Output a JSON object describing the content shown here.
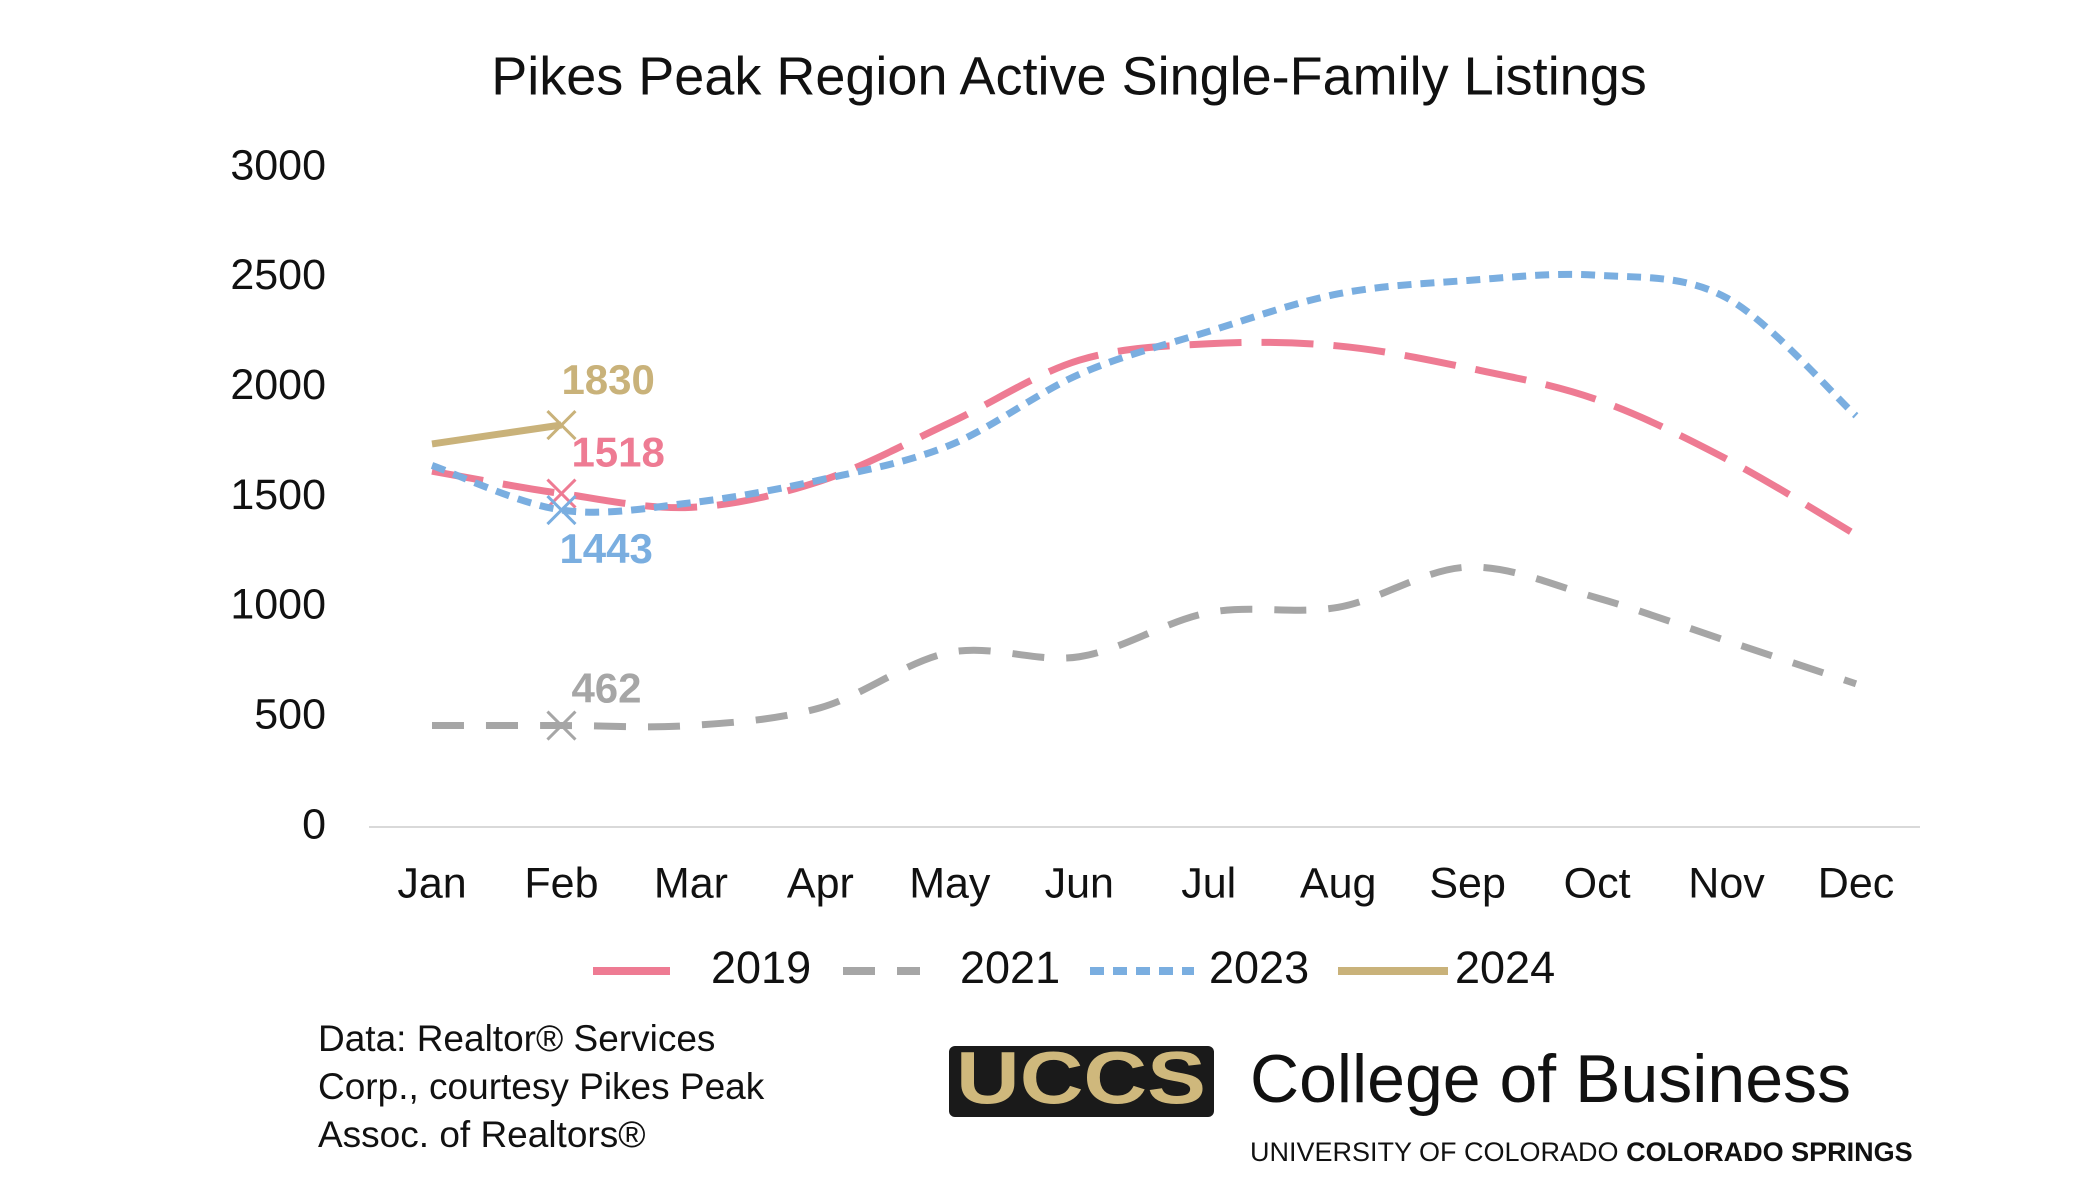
{
  "chart_data": {
    "type": "line",
    "title": "Pikes Peak Region Active Single-Family Listings",
    "categories": [
      "Jan",
      "Feb",
      "Mar",
      "Apr",
      "May",
      "Jun",
      "Jul",
      "Aug",
      "Sep",
      "Oct",
      "Nov",
      "Dec"
    ],
    "series": [
      {
        "name": "2019",
        "color": "#ee7b93",
        "dash": "long-dash",
        "values": [
          1620,
          1518,
          1455,
          1575,
          1840,
          2125,
          2200,
          2190,
          2090,
          1945,
          1675,
          1330
        ]
      },
      {
        "name": "2021",
        "color": "#a6a6a6",
        "dash": "dash",
        "values": [
          462,
          462,
          462,
          543,
          795,
          775,
          976,
          1000,
          1183,
          1043,
          848,
          652
        ]
      },
      {
        "name": "2023",
        "color": "#7aaee0",
        "dash": "short-dash",
        "values": [
          1646,
          1443,
          1476,
          1580,
          1738,
          2061,
          2256,
          2427,
          2488,
          2512,
          2409,
          1872
        ]
      },
      {
        "name": "2024",
        "color": "#c9b27a",
        "dash": "solid",
        "values": [
          1744,
          1830,
          null,
          null,
          null,
          null,
          null,
          null,
          null,
          null,
          null,
          null
        ]
      }
    ],
    "ylim": [
      0,
      3000
    ],
    "yticks": [
      0,
      500,
      1000,
      1500,
      2000,
      2500,
      3000
    ],
    "grid": false,
    "legend": "bottom"
  },
  "source": [
    "Data: Realtor® Services",
    "Corp., courtesy Pikes Peak",
    "Assoc. of Realtors®"
  ],
  "branding": {
    "logo": "UCCS",
    "name": "College of Business",
    "university": "UNIVERSITY OF COLORADO",
    "campus": "COLORADO SPRINGS"
  }
}
